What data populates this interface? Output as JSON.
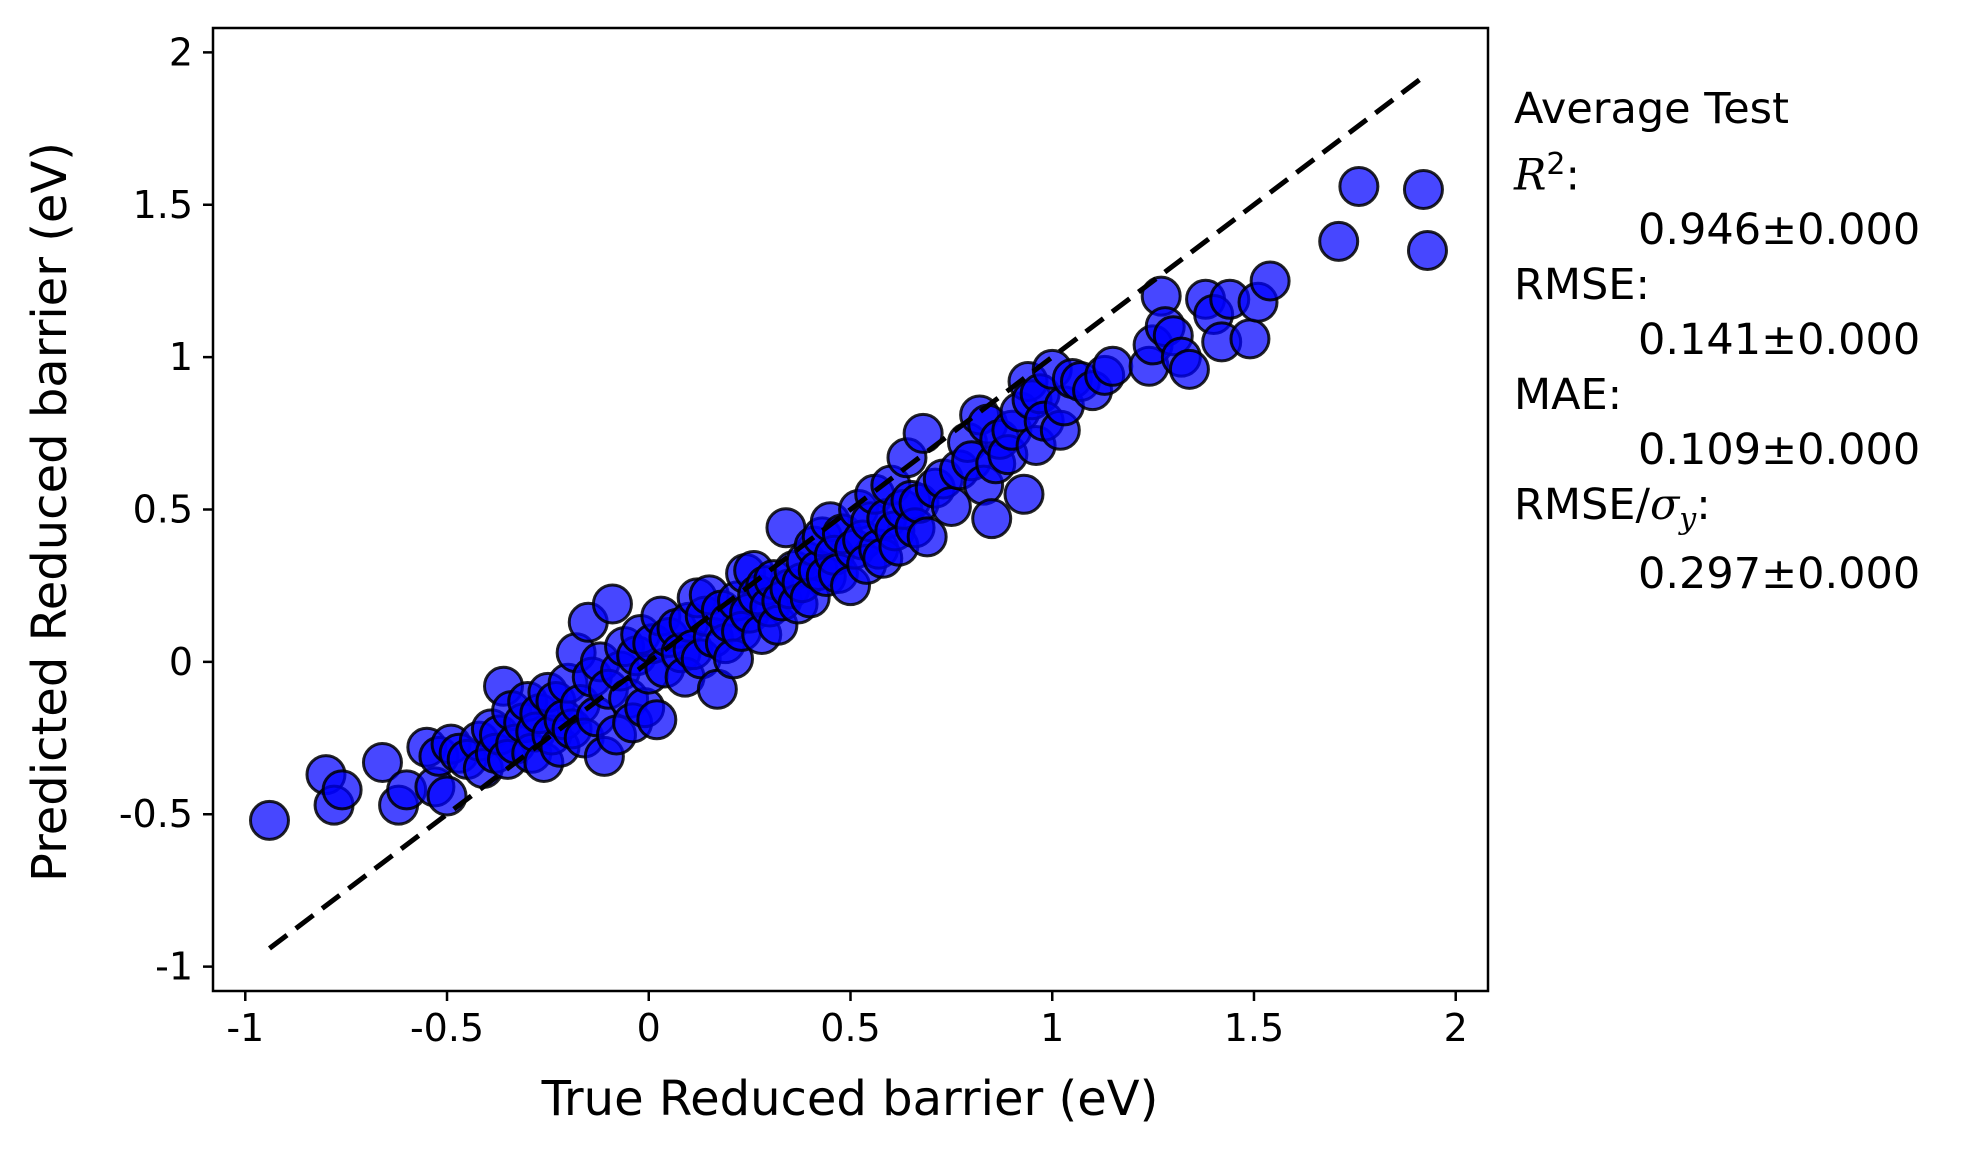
{
  "chart_data": {
    "type": "scatter",
    "xlabel": "True Reduced barrier (eV)",
    "ylabel": "Predicted Reduced barrier (eV)",
    "xlim": [
      -1.08,
      2.08
    ],
    "ylim": [
      -1.08,
      2.08
    ],
    "xticks": [
      "-1",
      "-0.5",
      "0",
      "0.5",
      "1",
      "1.5",
      "2"
    ],
    "yticks": [
      "-1",
      "-0.5",
      "0",
      "0.5",
      "1",
      "1.5",
      "2"
    ],
    "grid": false,
    "marker_color": "#0000ff",
    "edge_color": "#000000",
    "reference_line": {
      "style": "dashed",
      "color": "#000000",
      "from": [
        -0.94,
        -0.94
      ],
      "to": [
        1.93,
        1.93
      ]
    },
    "points": [
      [
        -0.94,
        -0.52
      ],
      [
        -0.8,
        -0.37
      ],
      [
        -0.78,
        -0.47
      ],
      [
        -0.76,
        -0.42
      ],
      [
        -0.66,
        -0.33
      ],
      [
        -0.62,
        -0.47
      ],
      [
        -0.6,
        -0.42
      ],
      [
        -0.55,
        -0.28
      ],
      [
        -0.53,
        -0.41
      ],
      [
        -0.52,
        -0.31
      ],
      [
        -0.5,
        -0.44
      ],
      [
        -0.49,
        -0.27
      ],
      [
        -0.47,
        -0.3
      ],
      [
        -0.45,
        -0.32
      ],
      [
        -0.42,
        -0.26
      ],
      [
        -0.41,
        -0.35
      ],
      [
        -0.39,
        -0.22
      ],
      [
        -0.38,
        -0.3
      ],
      [
        -0.37,
        -0.24
      ],
      [
        -0.36,
        -0.08
      ],
      [
        -0.35,
        -0.32
      ],
      [
        -0.34,
        -0.16
      ],
      [
        -0.33,
        -0.27
      ],
      [
        -0.31,
        -0.2
      ],
      [
        -0.3,
        -0.13
      ],
      [
        -0.29,
        -0.3
      ],
      [
        -0.28,
        -0.23
      ],
      [
        -0.27,
        -0.17
      ],
      [
        -0.26,
        -0.33
      ],
      [
        -0.25,
        -0.1
      ],
      [
        -0.24,
        -0.24
      ],
      [
        -0.23,
        -0.13
      ],
      [
        -0.22,
        -0.28
      ],
      [
        -0.21,
        -0.19
      ],
      [
        -0.2,
        -0.07
      ],
      [
        -0.19,
        -0.22
      ],
      [
        -0.18,
        0.03
      ],
      [
        -0.17,
        -0.14
      ],
      [
        -0.16,
        -0.25
      ],
      [
        -0.15,
        0.13
      ],
      [
        -0.14,
        -0.05
      ],
      [
        -0.13,
        -0.18
      ],
      [
        -0.12,
        0.0
      ],
      [
        -0.11,
        -0.31
      ],
      [
        -0.1,
        -0.09
      ],
      [
        -0.09,
        0.19
      ],
      [
        -0.08,
        -0.24
      ],
      [
        -0.07,
        -0.03
      ],
      [
        -0.06,
        0.05
      ],
      [
        -0.05,
        -0.12
      ],
      [
        -0.04,
        -0.2
      ],
      [
        -0.03,
        0.02
      ],
      [
        -0.02,
        0.09
      ],
      [
        -0.01,
        -0.15
      ],
      [
        0.0,
        -0.04
      ],
      [
        0.01,
        0.06
      ],
      [
        0.02,
        -0.19
      ],
      [
        0.03,
        0.15
      ],
      [
        0.04,
        -0.02
      ],
      [
        0.05,
        0.08
      ],
      [
        0.07,
        0.11
      ],
      [
        0.08,
        0.03
      ],
      [
        0.09,
        -0.05
      ],
      [
        0.1,
        0.13
      ],
      [
        0.11,
        0.04
      ],
      [
        0.12,
        0.21
      ],
      [
        0.13,
        0.01
      ],
      [
        0.14,
        0.15
      ],
      [
        0.15,
        0.22
      ],
      [
        0.16,
        0.08
      ],
      [
        0.17,
        -0.09
      ],
      [
        0.18,
        0.17
      ],
      [
        0.19,
        0.06
      ],
      [
        0.2,
        0.13
      ],
      [
        0.21,
        0.01
      ],
      [
        0.22,
        0.2
      ],
      [
        0.23,
        0.1
      ],
      [
        0.24,
        0.29
      ],
      [
        0.25,
        0.16
      ],
      [
        0.26,
        0.3
      ],
      [
        0.27,
        0.22
      ],
      [
        0.28,
        0.09
      ],
      [
        0.29,
        0.25
      ],
      [
        0.3,
        0.18
      ],
      [
        0.31,
        0.27
      ],
      [
        0.32,
        0.12
      ],
      [
        0.33,
        0.2
      ],
      [
        0.34,
        0.44
      ],
      [
        0.35,
        0.24
      ],
      [
        0.36,
        0.3
      ],
      [
        0.37,
        0.19
      ],
      [
        0.38,
        0.26
      ],
      [
        0.39,
        0.33
      ],
      [
        0.4,
        0.21
      ],
      [
        0.41,
        0.38
      ],
      [
        0.42,
        0.3
      ],
      [
        0.43,
        0.41
      ],
      [
        0.44,
        0.28
      ],
      [
        0.45,
        0.46
      ],
      [
        0.46,
        0.35
      ],
      [
        0.47,
        0.29
      ],
      [
        0.48,
        0.42
      ],
      [
        0.5,
        0.25
      ],
      [
        0.51,
        0.37
      ],
      [
        0.52,
        0.5
      ],
      [
        0.53,
        0.4
      ],
      [
        0.54,
        0.32
      ],
      [
        0.55,
        0.46
      ],
      [
        0.56,
        0.55
      ],
      [
        0.57,
        0.37
      ],
      [
        0.58,
        0.34
      ],
      [
        0.59,
        0.47
      ],
      [
        0.6,
        0.58
      ],
      [
        0.61,
        0.43
      ],
      [
        0.62,
        0.38
      ],
      [
        0.63,
        0.5
      ],
      [
        0.64,
        0.67
      ],
      [
        0.65,
        0.53
      ],
      [
        0.66,
        0.44
      ],
      [
        0.67,
        0.52
      ],
      [
        0.68,
        0.75
      ],
      [
        0.69,
        0.41
      ],
      [
        0.71,
        0.57
      ],
      [
        0.73,
        0.6
      ],
      [
        0.75,
        0.51
      ],
      [
        0.77,
        0.63
      ],
      [
        0.79,
        0.72
      ],
      [
        0.8,
        0.66
      ],
      [
        0.82,
        0.81
      ],
      [
        0.83,
        0.58
      ],
      [
        0.84,
        0.78
      ],
      [
        0.85,
        0.47
      ],
      [
        0.86,
        0.65
      ],
      [
        0.87,
        0.73
      ],
      [
        0.89,
        0.68
      ],
      [
        0.9,
        0.76
      ],
      [
        0.92,
        0.82
      ],
      [
        0.93,
        0.55
      ],
      [
        0.94,
        0.92
      ],
      [
        0.95,
        0.86
      ],
      [
        0.96,
        0.71
      ],
      [
        0.97,
        0.88
      ],
      [
        0.98,
        0.79
      ],
      [
        1.0,
        0.96
      ],
      [
        1.02,
        0.76
      ],
      [
        1.03,
        0.84
      ],
      [
        1.05,
        0.93
      ],
      [
        1.07,
        0.92
      ],
      [
        1.1,
        0.89
      ],
      [
        1.13,
        0.94
      ],
      [
        1.15,
        0.97
      ],
      [
        1.24,
        0.97
      ],
      [
        1.25,
        1.04
      ],
      [
        1.27,
        1.2
      ],
      [
        1.28,
        1.1
      ],
      [
        1.3,
        1.07
      ],
      [
        1.32,
        1.0
      ],
      [
        1.34,
        0.96
      ],
      [
        1.38,
        1.19
      ],
      [
        1.4,
        1.14
      ],
      [
        1.42,
        1.05
      ],
      [
        1.44,
        1.19
      ],
      [
        1.49,
        1.06
      ],
      [
        1.51,
        1.18
      ],
      [
        1.54,
        1.25
      ],
      [
        1.71,
        1.38
      ],
      [
        1.76,
        1.56
      ],
      [
        1.92,
        1.55
      ],
      [
        1.93,
        1.35
      ]
    ]
  },
  "stats": {
    "heading": "Average Test",
    "r2_label": "R",
    "r2_sup": "2",
    "r2_colon": ":",
    "r2_value": "0.946±0.000",
    "rmse_label": "RMSE:",
    "rmse_value": "0.141±0.000",
    "mae_label": "MAE:",
    "mae_value": "0.109±0.000",
    "ratio_label": "RMSE/",
    "ratio_sigma": "σ",
    "ratio_sub": "y",
    "ratio_colon": ":",
    "ratio_value": "0.297±0.000"
  }
}
